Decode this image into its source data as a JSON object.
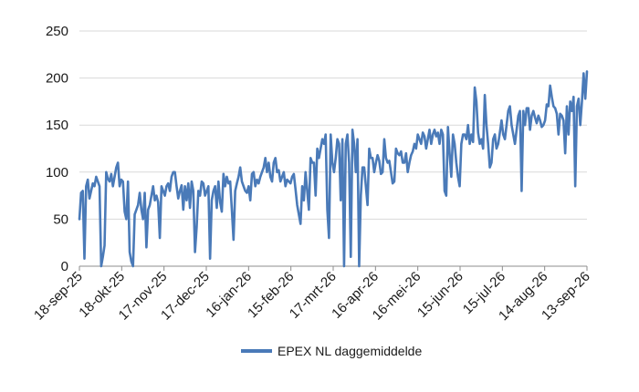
{
  "chart_data": {
    "type": "line",
    "title": "",
    "xlabel": "",
    "ylabel": "",
    "ylim": [
      0,
      250
    ],
    "yticks": [
      0,
      50,
      100,
      150,
      200,
      250
    ],
    "grid": "horizontal",
    "legend_position": "bottom",
    "x_tick_labels": [
      "18-sep-25",
      "18-okt-25",
      "17-nov-25",
      "17-dec-25",
      "16-jan-26",
      "15-feb-26",
      "17-mrt-26",
      "16-apr-26",
      "16-mei-26",
      "15-jun-26",
      "15-jul-26",
      "14-aug-26",
      "13-sep-26"
    ],
    "series": [
      {
        "name": "EPEX NL daggemiddelde",
        "color": "#4a7ab8",
        "values": [
          50,
          78,
          80,
          8,
          85,
          92,
          72,
          80,
          88,
          85,
          95,
          90,
          85,
          0,
          10,
          22,
          100,
          93,
          90,
          98,
          85,
          95,
          105,
          110,
          85,
          92,
          90,
          58,
          50,
          90,
          15,
          5,
          0,
          55,
          60,
          65,
          78,
          60,
          50,
          78,
          20,
          60,
          65,
          75,
          85,
          70,
          75,
          68,
          30,
          85,
          80,
          75,
          85,
          88,
          80,
          95,
          100,
          100,
          85,
          72,
          80,
          86,
          60,
          85,
          70,
          88,
          62,
          90,
          80,
          15,
          42,
          80,
          75,
          90,
          88,
          75,
          80,
          85,
          8,
          70,
          80,
          85,
          62,
          90,
          68,
          58,
          98,
          85,
          95,
          88,
          90,
          60,
          28,
          80,
          88,
          95,
          105,
          90,
          85,
          80,
          78,
          85,
          70,
          98,
          100,
          85,
          92,
          88,
          95,
          100,
          105,
          115,
          100,
          110,
          95,
          90,
          110,
          115,
          100,
          102,
          90,
          95,
          100,
          85,
          92,
          90,
          88,
          95,
          98,
          82,
          65,
          55,
          45,
          85,
          70,
          100,
          80,
          60,
          115,
          110,
          110,
          75,
          125,
          115,
          125,
          135,
          130,
          140,
          60,
          30,
          140,
          110,
          100,
          115,
          135,
          130,
          70,
          135,
          0,
          130,
          140,
          110,
          10,
          145,
          130,
          100,
          135,
          0,
          75,
          105,
          105,
          85,
          65,
          125,
          115,
          115,
          100,
          110,
          118,
          112,
          98,
          100,
          135,
          115,
          110,
          112,
          100,
          88,
          90,
          125,
          120,
          118,
          122,
          110,
          110,
          120,
          100,
          110,
          118,
          122,
          130,
          125,
          140,
          135,
          130,
          142,
          138,
          125,
          135,
          145,
          130,
          140,
          145,
          138,
          142,
          130,
          145,
          140,
          80,
          75,
          148,
          120,
          95,
          140,
          130,
          110,
          95,
          85,
          130,
          140,
          140,
          135,
          150,
          130,
          140,
          132,
          190,
          175,
          142,
          130,
          135,
          125,
          182,
          150,
          130,
          105,
          110,
          135,
          140,
          125,
          130,
          142,
          155,
          140,
          135,
          150,
          165,
          170,
          150,
          140,
          130,
          145,
          160,
          165,
          80,
          165,
          150,
          168,
          168,
          145,
          160,
          165,
          158,
          152,
          160,
          155,
          148,
          150,
          155,
          172,
          170,
          192,
          180,
          170,
          168,
          162,
          140,
          162,
          160,
          155,
          120,
          170,
          140,
          175,
          165,
          180,
          85,
          170,
          178,
          150,
          175,
          205,
          178,
          207
        ]
      }
    ]
  }
}
